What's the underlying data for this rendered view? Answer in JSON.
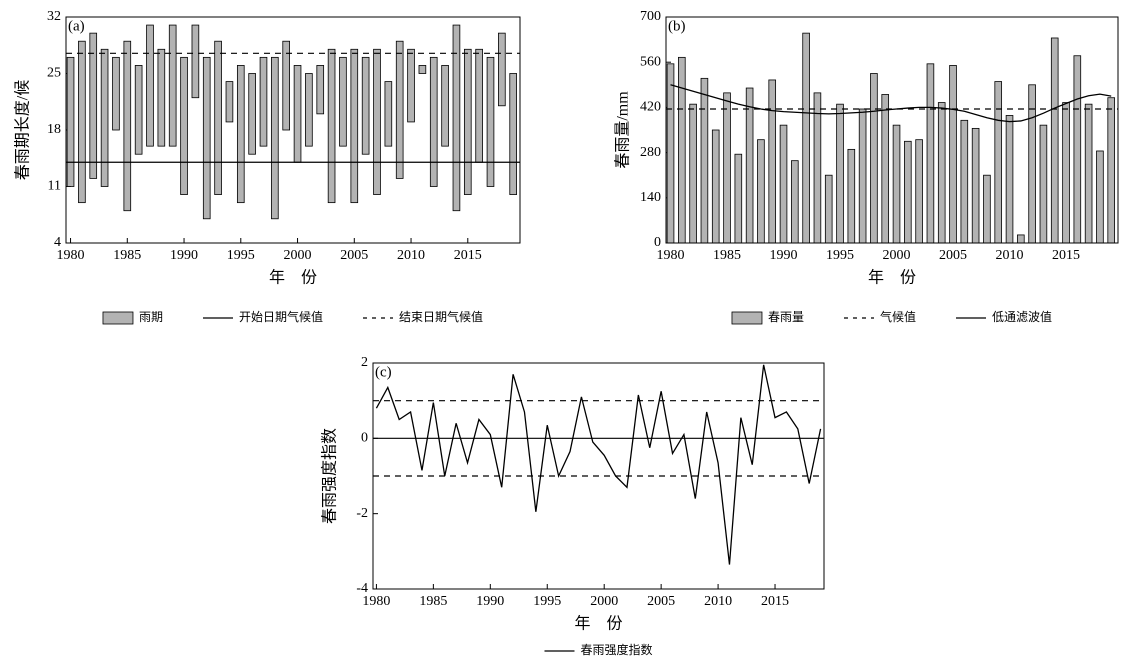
{
  "chart_data": [
    {
      "type": "floating_bar",
      "annotation": "(a)",
      "xlabel": "年　份",
      "ylabel": "春雨期长度/候",
      "x": [
        1980,
        1981,
        1982,
        1983,
        1984,
        1985,
        1986,
        1987,
        1988,
        1989,
        1990,
        1991,
        1992,
        1993,
        1994,
        1995,
        1996,
        1997,
        1998,
        1999,
        2000,
        2001,
        2002,
        2003,
        2004,
        2005,
        2006,
        2007,
        2008,
        2009,
        2010,
        2011,
        2012,
        2013,
        2014,
        2015,
        2016,
        2017,
        2018,
        2019
      ],
      "series": [
        {
          "name": "雨期",
          "color": "#b3b3b3",
          "low": [
            11,
            9,
            12,
            11,
            18,
            8,
            15,
            16,
            16,
            16,
            10,
            22,
            7,
            10,
            19,
            9,
            15,
            16,
            7,
            18,
            14,
            16,
            20,
            9,
            16,
            9,
            15,
            10,
            16,
            12,
            19,
            25,
            11,
            16,
            8,
            10,
            14,
            11,
            21,
            10
          ],
          "high": [
            27,
            29,
            30,
            28,
            27,
            29,
            26,
            31,
            28,
            31,
            27,
            31,
            27,
            29,
            24,
            26,
            25,
            27,
            27,
            29,
            26,
            25,
            26,
            28,
            27,
            28,
            27,
            28,
            24,
            29,
            28,
            26,
            27,
            26,
            31,
            28,
            28,
            27,
            30,
            25
          ]
        }
      ],
      "reference_lines": [
        {
          "name": "开始日期气候值",
          "value": 14,
          "dash": false
        },
        {
          "name": "结束日期气候值",
          "value": 27.5,
          "dash": true
        }
      ],
      "xlim": [
        1979.6,
        2019.6
      ],
      "xticks": [
        1980,
        1985,
        1990,
        1995,
        2000,
        2005,
        2010,
        2015
      ],
      "ylim": [
        4,
        32
      ],
      "yticks": [
        4,
        11,
        18,
        25,
        32
      ]
    },
    {
      "type": "bar",
      "annotation": "(b)",
      "xlabel": "年　份",
      "ylabel": "春雨量/mm",
      "x": [
        1980,
        1981,
        1982,
        1983,
        1984,
        1985,
        1986,
        1987,
        1988,
        1989,
        1990,
        1991,
        1992,
        1993,
        1994,
        1995,
        1996,
        1997,
        1998,
        1999,
        2000,
        2001,
        2002,
        2003,
        2004,
        2005,
        2006,
        2007,
        2008,
        2009,
        2010,
        2011,
        2012,
        2013,
        2014,
        2015,
        2016,
        2017,
        2018,
        2019
      ],
      "series": [
        {
          "name": "春雨量",
          "type": "bar",
          "color": "#b3b3b3",
          "values": [
            555,
            575,
            430,
            510,
            350,
            465,
            275,
            480,
            320,
            505,
            365,
            255,
            650,
            465,
            210,
            430,
            290,
            415,
            525,
            460,
            365,
            315,
            320,
            555,
            435,
            550,
            380,
            355,
            210,
            500,
            395,
            25,
            490,
            365,
            635,
            435,
            580,
            430,
            285,
            450
          ]
        },
        {
          "name": "低通滤波值",
          "type": "line",
          "color": "#000000",
          "values": [
            490,
            480,
            470,
            460,
            450,
            440,
            430,
            422,
            415,
            410,
            407,
            405,
            403,
            401,
            400,
            401,
            403,
            405,
            408,
            412,
            415,
            418,
            420,
            420,
            418,
            414,
            408,
            398,
            388,
            380,
            376,
            378,
            388,
            402,
            418,
            432,
            446,
            456,
            461,
            455
          ]
        }
      ],
      "reference_lines": [
        {
          "name": "气候值",
          "value": 415,
          "dash": true
        }
      ],
      "xlim": [
        1979.6,
        2019.6
      ],
      "xticks": [
        1980,
        1985,
        1990,
        1995,
        2000,
        2005,
        2010,
        2015
      ],
      "ylim": [
        0,
        700
      ],
      "yticks": [
        0,
        140,
        280,
        420,
        560,
        700
      ]
    },
    {
      "type": "line",
      "annotation": "(c)",
      "xlabel": "年　份",
      "ylabel": "春雨强度指数",
      "x": [
        1980,
        1981,
        1982,
        1983,
        1984,
        1985,
        1986,
        1987,
        1988,
        1989,
        1990,
        1991,
        1992,
        1993,
        1994,
        1995,
        1996,
        1997,
        1998,
        1999,
        2000,
        2001,
        2002,
        2003,
        2004,
        2005,
        2006,
        2007,
        2008,
        2009,
        2010,
        2011,
        2012,
        2013,
        2014,
        2015,
        2016,
        2017,
        2018,
        2019
      ],
      "series": [
        {
          "name": "春雨强度指数",
          "color": "#000000",
          "values": [
            0.8,
            1.35,
            0.5,
            0.7,
            -0.85,
            0.95,
            -1.0,
            0.4,
            -0.65,
            0.5,
            0.1,
            -1.3,
            1.7,
            0.7,
            -1.95,
            0.35,
            -1.0,
            -0.35,
            1.1,
            -0.1,
            -0.45,
            -1.0,
            -1.3,
            1.15,
            -0.25,
            1.25,
            -0.4,
            0.1,
            -1.6,
            0.7,
            -0.65,
            -3.35,
            0.55,
            -0.7,
            1.95,
            0.55,
            0.7,
            0.25,
            -1.2,
            0.25
          ]
        }
      ],
      "reference_lines": [
        {
          "value": 1,
          "dash": true
        },
        {
          "value": -1,
          "dash": true
        },
        {
          "value": 0,
          "dash": false
        }
      ],
      "xlim": [
        1979.7,
        2019.3
      ],
      "xticks": [
        1980,
        1985,
        1990,
        1995,
        2000,
        2005,
        2010,
        2015
      ],
      "ylim": [
        -4,
        2
      ],
      "yticks": [
        -4,
        -2,
        0,
        2
      ]
    }
  ]
}
